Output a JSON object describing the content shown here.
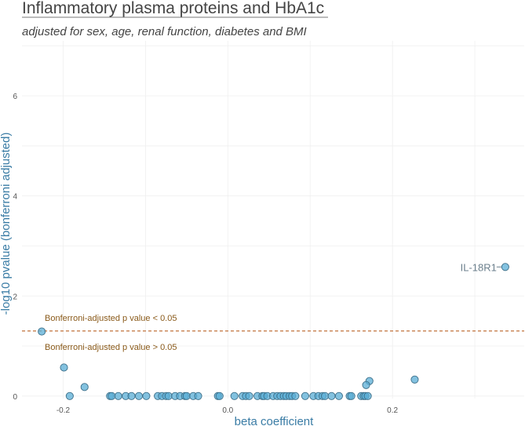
{
  "chart_data": {
    "type": "scatter",
    "title": "Inflammatory plasma proteins and HbA1c",
    "subtitle": "adjusted for sex, age, renal function, diabetes and BMI",
    "xlabel": "beta coefficient",
    "ylabel": "-log10 pvalue (bonferroni adjusted)",
    "xlim": [
      -0.25,
      0.36
    ],
    "ylim": [
      -0.05,
      7.1
    ],
    "x_ticks": [
      -0.2,
      0.0,
      0.2
    ],
    "x_tick_labels": [
      "-0.2",
      "0.0",
      "0.2"
    ],
    "y_ticks": [
      0,
      2,
      4,
      6
    ],
    "y_tick_labels": [
      "0",
      "2",
      "4",
      "6"
    ],
    "grid": true,
    "threshold": {
      "y": 1.301,
      "label_above": "Bonferroni-adjusted p value < 0.05",
      "label_below": "Bonferroni-adjusted p value > 0.05",
      "color": "#c0703a"
    },
    "point_color": "#5aaed6",
    "point_edge_color": "#3c6e88",
    "points": [
      {
        "x": 0.337,
        "y": 2.58,
        "label": "IL-18R1"
      },
      {
        "x": -0.226,
        "y": 1.29
      },
      {
        "x": -0.199,
        "y": 0.57
      },
      {
        "x": -0.174,
        "y": 0.18
      },
      {
        "x": -0.192,
        "y": 0.0
      },
      {
        "x": 0.227,
        "y": 0.33
      },
      {
        "x": 0.172,
        "y": 0.3
      },
      {
        "x": 0.168,
        "y": 0.22
      },
      {
        "x": -0.143,
        "y": 0.0
      },
      {
        "x": -0.141,
        "y": 0.0
      },
      {
        "x": -0.133,
        "y": 0.0
      },
      {
        "x": -0.124,
        "y": 0.0
      },
      {
        "x": -0.117,
        "y": 0.0
      },
      {
        "x": -0.108,
        "y": 0.0
      },
      {
        "x": -0.099,
        "y": 0.0
      },
      {
        "x": -0.085,
        "y": 0.0
      },
      {
        "x": -0.08,
        "y": 0.0
      },
      {
        "x": -0.075,
        "y": 0.0
      },
      {
        "x": -0.072,
        "y": 0.0
      },
      {
        "x": -0.064,
        "y": 0.0
      },
      {
        "x": -0.058,
        "y": 0.0
      },
      {
        "x": -0.052,
        "y": 0.0
      },
      {
        "x": -0.05,
        "y": 0.0
      },
      {
        "x": -0.042,
        "y": 0.0
      },
      {
        "x": -0.036,
        "y": 0.0
      },
      {
        "x": -0.012,
        "y": 0.0
      },
      {
        "x": -0.01,
        "y": 0.0
      },
      {
        "x": 0.008,
        "y": 0.0
      },
      {
        "x": 0.018,
        "y": 0.0
      },
      {
        "x": 0.022,
        "y": 0.0
      },
      {
        "x": 0.026,
        "y": 0.0
      },
      {
        "x": 0.036,
        "y": 0.0
      },
      {
        "x": 0.042,
        "y": 0.0
      },
      {
        "x": 0.044,
        "y": 0.0
      },
      {
        "x": 0.048,
        "y": 0.0
      },
      {
        "x": 0.055,
        "y": 0.0
      },
      {
        "x": 0.06,
        "y": 0.0
      },
      {
        "x": 0.064,
        "y": 0.0
      },
      {
        "x": 0.068,
        "y": 0.0
      },
      {
        "x": 0.071,
        "y": 0.0
      },
      {
        "x": 0.075,
        "y": 0.0
      },
      {
        "x": 0.078,
        "y": 0.0
      },
      {
        "x": 0.082,
        "y": 0.0
      },
      {
        "x": 0.094,
        "y": 0.0
      },
      {
        "x": 0.104,
        "y": 0.0
      },
      {
        "x": 0.11,
        "y": 0.0
      },
      {
        "x": 0.115,
        "y": 0.0
      },
      {
        "x": 0.118,
        "y": 0.0
      },
      {
        "x": 0.126,
        "y": 0.0
      },
      {
        "x": 0.135,
        "y": 0.0
      },
      {
        "x": 0.148,
        "y": 0.0
      },
      {
        "x": 0.15,
        "y": 0.0
      },
      {
        "x": 0.162,
        "y": 0.0
      },
      {
        "x": 0.165,
        "y": 0.0
      },
      {
        "x": 0.167,
        "y": 0.0
      },
      {
        "x": 0.17,
        "y": 0.0
      }
    ]
  }
}
